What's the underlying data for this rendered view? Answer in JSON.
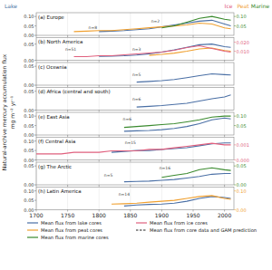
{
  "y_label": [
    "Natural-archive mercury accumulation flux",
    "mg m⁻² yr⁻¹"
  ],
  "axis_headers": [
    {
      "text": "Lake",
      "color": "#4a6fa5"
    },
    {
      "text": "Ice",
      "color": "#e0607e"
    },
    {
      "text": "Peat",
      "color": "#f0a030"
    },
    {
      "text": "Marine",
      "color": "#3a8a2e"
    }
  ],
  "legend_entries": [
    {
      "text": "Mean flux from lake cores",
      "color": "#4a6fa5",
      "line_style": "solid"
    },
    {
      "text": "Mean flux from peat cores",
      "color": "#f0a030",
      "line_style": "solid"
    },
    {
      "text": "Mean flux from marine cores",
      "color": "#3a8a2e",
      "line_style": "solid"
    },
    {
      "text": "Mean flux from ice cores",
      "color": "#e0607e",
      "line_style": "solid"
    },
    {
      "text": "Mean flux from core data and GAM prediction",
      "color": "#222222",
      "line_style": "dashed"
    }
  ],
  "chart_data": [
    {
      "type": "line",
      "title": "(a) Europe",
      "x": [
        1700,
        1720,
        1740,
        1760,
        1780,
        1800,
        1820,
        1840,
        1860,
        1880,
        1900,
        1920,
        1940,
        1960,
        1980,
        2000,
        2010
      ],
      "xlim": [
        1700,
        2015
      ],
      "xticks": [
        1700,
        1750,
        1800,
        1850,
        1900,
        1950,
        2000
      ],
      "ylim": [
        0,
        0.12
      ],
      "yticks": [
        {
          "value": 0,
          "label": "0.00"
        },
        0.05,
        {
          "value": 0.1,
          "label": "0.10"
        }
      ],
      "y2lim": [
        0,
        0.12
      ],
      "y2ticks": [
        0.05,
        {
          "value": 0.1,
          "label": "0.10"
        }
      ],
      "grid": true,
      "tick_labels": "y",
      "series": [
        {
          "color": "#4a6fa5",
          "values": [
            null,
            null,
            null,
            null,
            null,
            0.02,
            0.022,
            0.025,
            0.03,
            0.035,
            0.045,
            0.055,
            0.065,
            0.075,
            0.08,
            0.06,
            0.05
          ]
        },
        {
          "color": "#f0a030",
          "axis": "y2",
          "values": [
            null,
            null,
            null,
            0.02,
            0.022,
            0.025,
            0.025,
            0.03,
            0.035,
            0.04,
            0.045,
            0.05,
            0.055,
            0.065,
            0.06,
            0.04,
            0.035
          ]
        },
        {
          "color": "#3a8a2e",
          "axis": "y2",
          "values": [
            null,
            null,
            null,
            null,
            null,
            null,
            null,
            null,
            null,
            null,
            0.04,
            0.05,
            0.07,
            0.09,
            0.1,
            0.085,
            0.08
          ]
        }
      ],
      "annotations": [
        {
          "text": "n=8",
          "x": 1790,
          "y": 0.035
        },
        {
          "text": "n=2",
          "x": 1890,
          "y": 0.065
        }
      ]
    },
    {
      "type": "line",
      "title": "(b) North America",
      "x": [
        1700,
        1720,
        1740,
        1760,
        1780,
        1800,
        1820,
        1840,
        1860,
        1880,
        1900,
        1920,
        1940,
        1960,
        1980,
        2000,
        2010
      ],
      "xlim": [
        1700,
        2015
      ],
      "xticks": [
        1700,
        1750,
        1800,
        1850,
        1900,
        1950,
        2000
      ],
      "ylim": [
        0,
        0.07
      ],
      "yticks": [
        {
          "value": 0,
          "label": "0.00"
        },
        0.05
      ],
      "y2lim": [
        0,
        0.025
      ],
      "y2ticks": [
        {
          "value": 0.01,
          "label": "0.010"
        },
        {
          "value": 0.02,
          "label": "0.020"
        }
      ],
      "grid": true,
      "tick_labels": "y",
      "series": [
        {
          "color": "#4a6fa5",
          "values": [
            null,
            null,
            null,
            null,
            null,
            0.012,
            0.013,
            0.014,
            0.016,
            0.02,
            0.025,
            0.032,
            0.04,
            0.048,
            0.05,
            0.042,
            0.04
          ]
        },
        {
          "color": "#f0a030",
          "values": [
            null,
            null,
            null,
            null,
            null,
            null,
            null,
            null,
            null,
            0.015,
            0.018,
            0.022,
            0.028,
            0.035,
            0.038,
            0.03,
            0.028
          ]
        },
        {
          "color": "#e0607e",
          "axis": "y2",
          "values": [
            null,
            null,
            null,
            0.004,
            0.004,
            0.005,
            0.005,
            0.006,
            0.007,
            0.008,
            0.009,
            0.011,
            0.014,
            0.016,
            0.013,
            0.01,
            0.009
          ]
        }
      ],
      "annotations": [
        {
          "text": "n=51",
          "x": 1755,
          "y": 0.03
        },
        {
          "text": "n=3",
          "x": 1860,
          "y": 0.03
        }
      ]
    },
    {
      "type": "line",
      "title": "(c) Oceania",
      "x": [
        1700,
        1720,
        1740,
        1760,
        1780,
        1800,
        1820,
        1840,
        1860,
        1880,
        1900,
        1920,
        1940,
        1960,
        1980,
        2000,
        2010
      ],
      "xlim": [
        1700,
        2015
      ],
      "xticks": [
        1700,
        1750,
        1800,
        1850,
        1900,
        1950,
        2000
      ],
      "ylim": [
        0,
        0.06
      ],
      "yticks": [
        {
          "value": 0,
          "label": "0.00"
        },
        0.05
      ],
      "grid": true,
      "tick_labels": "y",
      "series": [
        {
          "color": "#4a6fa5",
          "values": [
            null,
            null,
            null,
            null,
            null,
            null,
            null,
            null,
            0.008,
            0.01,
            0.012,
            0.015,
            0.02,
            0.025,
            0.03,
            0.028,
            0.027
          ]
        }
      ],
      "annotations": [
        {
          "text": "n=5",
          "x": 1860,
          "y": 0.025
        }
      ]
    },
    {
      "type": "line",
      "title": "(d) Africa (central and south)",
      "x": [
        1700,
        1720,
        1740,
        1760,
        1780,
        1800,
        1820,
        1840,
        1860,
        1880,
        1900,
        1920,
        1940,
        1960,
        1980,
        2000,
        2010
      ],
      "xlim": [
        1700,
        2015
      ],
      "xticks": [
        1700,
        1750,
        1800,
        1850,
        1900,
        1950,
        2000
      ],
      "ylim": [
        0,
        0.06
      ],
      "yticks": [
        {
          "value": 0,
          "label": "0.00"
        },
        0.05
      ],
      "grid": true,
      "tick_labels": "y",
      "series": [
        {
          "color": "#4a6fa5",
          "values": [
            null,
            null,
            null,
            null,
            null,
            null,
            null,
            null,
            0.008,
            0.01,
            0.012,
            0.015,
            0.018,
            0.024,
            0.03,
            0.035,
            0.04
          ]
        }
      ],
      "annotations": [
        {
          "text": "n=6",
          "x": 1860,
          "y": 0.025
        }
      ]
    },
    {
      "type": "line",
      "title": "(e) East Asia",
      "x": [
        1700,
        1720,
        1740,
        1760,
        1780,
        1800,
        1820,
        1840,
        1860,
        1880,
        1900,
        1920,
        1940,
        1960,
        1980,
        2000,
        2010
      ],
      "xlim": [
        1700,
        2015
      ],
      "xticks": [
        1700,
        1750,
        1800,
        1850,
        1900,
        1950,
        2000
      ],
      "ylim": [
        0,
        0.12
      ],
      "yticks": [
        {
          "value": 0,
          "label": "0.00"
        },
        0.05,
        {
          "value": 0.1,
          "label": "0.10"
        }
      ],
      "y2lim": [
        0,
        0.12
      ],
      "y2ticks": [
        0.05,
        {
          "value": 0.1,
          "label": "0.10"
        }
      ],
      "grid": true,
      "tick_labels": "y",
      "series": [
        {
          "color": "#4a6fa5",
          "values": [
            null,
            null,
            null,
            null,
            null,
            null,
            null,
            0.02,
            0.022,
            0.024,
            0.028,
            0.035,
            0.045,
            0.06,
            0.08,
            0.09,
            0.085
          ]
        },
        {
          "color": "#3a8a2e",
          "axis": "y2",
          "values": [
            null,
            null,
            null,
            null,
            null,
            null,
            null,
            0.04,
            0.045,
            0.05,
            0.055,
            0.06,
            0.07,
            0.08,
            0.095,
            0.1,
            0.1
          ]
        }
      ],
      "annotations": [
        {
          "text": "n=6",
          "x": 1845,
          "y": 0.075
        }
      ]
    },
    {
      "type": "line",
      "title": "(f) Central Asia",
      "x": [
        1700,
        1720,
        1740,
        1760,
        1780,
        1800,
        1820,
        1840,
        1860,
        1880,
        1900,
        1920,
        1940,
        1960,
        1980,
        2000,
        2010
      ],
      "xlim": [
        1700,
        2015
      ],
      "xticks": [
        1700,
        1750,
        1800,
        1850,
        1900,
        1950,
        2000
      ],
      "ylim": [
        0,
        0.12
      ],
      "yticks": [
        {
          "value": 0,
          "label": "0.00"
        },
        0.05,
        {
          "value": 0.1,
          "label": "0.10"
        }
      ],
      "y2lim": [
        0,
        0.0015
      ],
      "y2ticks": [
        {
          "value": 0,
          "label": "0.000"
        },
        0.001
      ],
      "grid": true,
      "tick_labels": "y",
      "series": [
        {
          "color": "#4a6fa5",
          "values": [
            null,
            null,
            null,
            null,
            null,
            null,
            0.04,
            0.045,
            0.05,
            0.05,
            0.055,
            0.06,
            0.065,
            0.075,
            0.085,
            0.09,
            0.09
          ]
        },
        {
          "color": "#e0607e",
          "axis": "y2",
          "values": [
            0.0004,
            0.0004,
            0.0004,
            0.0005,
            0.0005,
            0.0005,
            0.0006,
            0.0006,
            0.0006,
            0.0007,
            0.0007,
            0.0008,
            0.0009,
            0.001,
            0.0011,
            0.001,
            0.001
          ]
        }
      ],
      "annotations": [
        {
          "text": "n=15",
          "x": 1850,
          "y": 0.085
        }
      ]
    },
    {
      "type": "line",
      "title": "(g) The Arctic",
      "x": [
        1700,
        1720,
        1740,
        1760,
        1780,
        1800,
        1820,
        1840,
        1860,
        1880,
        1900,
        1920,
        1940,
        1960,
        1980,
        2000,
        2010
      ],
      "xlim": [
        1700,
        2015
      ],
      "xticks": [
        1700,
        1750,
        1800,
        1850,
        1900,
        1950,
        2000
      ],
      "ylim": [
        0,
        0.06
      ],
      "yticks": [
        {
          "value": 0,
          "label": "0.00"
        },
        0.05
      ],
      "y2lim": [
        0,
        0.06
      ],
      "y2ticks": [
        {
          "value": 0,
          "label": "0.00"
        },
        0.05
      ],
      "grid": true,
      "tick_labels": "y",
      "series": [
        {
          "color": "#4a6fa5",
          "values": [
            null,
            null,
            null,
            null,
            null,
            null,
            null,
            0.008,
            0.009,
            0.01,
            0.012,
            0.014,
            0.018,
            0.022,
            0.028,
            0.03,
            0.03
          ]
        },
        {
          "color": "#3a8a2e",
          "axis": "y2",
          "values": [
            null,
            null,
            null,
            null,
            null,
            null,
            null,
            null,
            null,
            null,
            0.02,
            0.025,
            0.03,
            0.04,
            0.045,
            0.04,
            0.038
          ]
        }
      ],
      "annotations": [
        {
          "text": "n=5",
          "x": 1815,
          "y": 0.022
        },
        {
          "text": "n=16",
          "x": 1905,
          "y": 0.04
        }
      ]
    },
    {
      "type": "line",
      "title": "(h) Latin America",
      "x": [
        1700,
        1720,
        1740,
        1760,
        1780,
        1800,
        1820,
        1840,
        1860,
        1880,
        1900,
        1920,
        1940,
        1960,
        1980,
        2000,
        2010
      ],
      "xlim": [
        1700,
        2015
      ],
      "xticks": [
        1700,
        1750,
        1800,
        1850,
        1900,
        1950,
        2000
      ],
      "ylim": [
        0,
        0.12
      ],
      "yticks": [
        {
          "value": 0,
          "label": "0.00"
        },
        0.05,
        {
          "value": 0.1,
          "label": "0.10"
        }
      ],
      "y2lim": [
        0,
        0.12
      ],
      "y2ticks": [
        {
          "value": 0,
          "label": "0.00"
        },
        {
          "value": 0.1,
          "label": "0.10"
        }
      ],
      "grid": true,
      "series": [
        {
          "color": "#4a6fa5",
          "values": [
            null,
            null,
            null,
            null,
            null,
            null,
            null,
            0.02,
            0.025,
            0.028,
            0.03,
            0.035,
            0.045,
            0.06,
            0.07,
            0.065,
            0.06
          ]
        },
        {
          "color": "#f0a030",
          "axis": "y2",
          "values": [
            null,
            null,
            null,
            null,
            null,
            null,
            0.03,
            0.032,
            0.035,
            0.04,
            0.045,
            0.05,
            0.06,
            0.07,
            0.075,
            0.06,
            0.055
          ]
        }
      ],
      "annotations": [
        {
          "text": "n=14",
          "x": 1840,
          "y": 0.075
        }
      ]
    }
  ]
}
